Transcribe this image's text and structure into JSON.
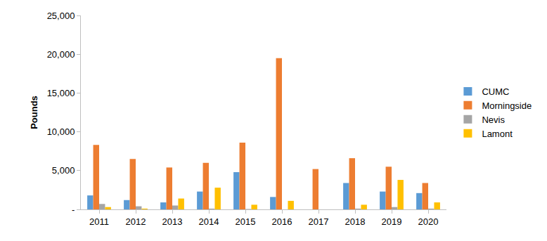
{
  "chart_data": {
    "type": "bar",
    "y_label": "Pounds",
    "categories": [
      "2011",
      "2012",
      "2013",
      "2014",
      "2015",
      "2016",
      "2017",
      "2018",
      "2019",
      "2020"
    ],
    "series": [
      {
        "name": "CUMC",
        "color": "#5B9BD5",
        "values": [
          1800,
          1200,
          900,
          2300,
          4800,
          1600,
          0,
          3400,
          2300,
          2100
        ]
      },
      {
        "name": "Morningside",
        "color": "#ED7D31",
        "values": [
          8300,
          6500,
          5400,
          6000,
          8600,
          19500,
          5200,
          6600,
          5500,
          3400
        ]
      },
      {
        "name": "Nevis",
        "color": "#A5A5A5",
        "values": [
          700,
          400,
          500,
          100,
          50,
          0,
          0,
          100,
          300,
          100
        ]
      },
      {
        "name": "Lamont",
        "color": "#FFC000",
        "values": [
          300,
          100,
          1400,
          2800,
          600,
          1100,
          0,
          600,
          3800,
          900
        ]
      }
    ],
    "ylim": [
      0,
      25000
    ],
    "yticks": [
      {
        "value": 0,
        "label": "-"
      },
      {
        "value": 5000,
        "label": "5,000"
      },
      {
        "value": 10000,
        "label": "10,000"
      },
      {
        "value": 15000,
        "label": "15,000"
      },
      {
        "value": 20000,
        "label": "20,000"
      },
      {
        "value": 25000,
        "label": "25,000"
      }
    ],
    "grid": false,
    "legend": "right"
  }
}
